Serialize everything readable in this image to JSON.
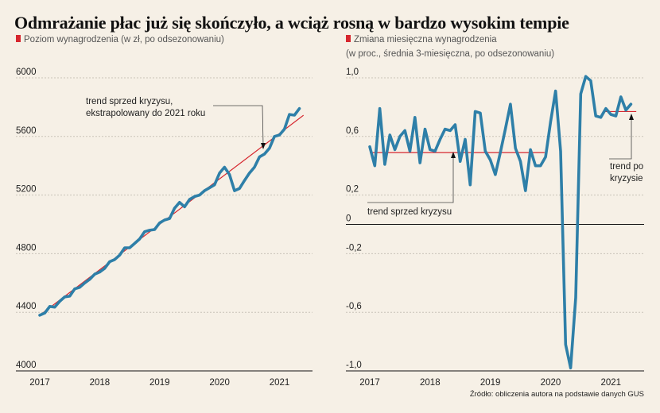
{
  "title": "Odmrażanie płac już się skończyło, a wciąż rosną w bardzo wysokim tempie",
  "source": "Źródło: obliczenia autora na podstawie danych GUS",
  "colors": {
    "series": "#2e7fa8",
    "trend": "#d6262e",
    "marker": "#d6262e",
    "grid": "#c9c3b8"
  },
  "chart_data": [
    {
      "type": "line",
      "subtitle": "Poziom wynagrodzenia (w zł, po odsezonowaniu)",
      "ylim": [
        4000,
        6000
      ],
      "yticks": [
        "6000",
        "5600",
        "5200",
        "4800",
        "4400",
        "4000"
      ],
      "ytick_values": [
        6000,
        5600,
        5200,
        4800,
        4400,
        4000
      ],
      "xlim": [
        2017.0,
        2021.55
      ],
      "xticks": [
        "2017",
        "2018",
        "2019",
        "2020",
        "2021"
      ],
      "xtick_values": [
        2017,
        2018,
        2019,
        2020,
        2021
      ],
      "series": [
        {
          "x_start": 2017.0,
          "x_step": 0.0833,
          "values": [
            4380,
            4395,
            4440,
            4435,
            4475,
            4505,
            4510,
            4560,
            4570,
            4600,
            4625,
            4660,
            4675,
            4700,
            4745,
            4760,
            4790,
            4840,
            4840,
            4870,
            4900,
            4950,
            4960,
            4965,
            5010,
            5030,
            5040,
            5110,
            5150,
            5120,
            5170,
            5190,
            5200,
            5230,
            5250,
            5270,
            5350,
            5390,
            5340,
            5230,
            5245,
            5300,
            5350,
            5390,
            5460,
            5480,
            5520,
            5600,
            5610,
            5650,
            5750,
            5745,
            5790
          ]
        }
      ],
      "trend": {
        "x_start": 2017.0,
        "y_start": 4380,
        "x_end": 2021.4,
        "y_end": 5745
      },
      "annotation": {
        "lines": [
          "trend sprzed kryzysu,",
          "ekstrapolowany do 2021 roku"
        ]
      }
    },
    {
      "type": "line",
      "subtitle": "Zmiana miesięczna wynagrodzenia",
      "subtitle2": "(w proc., średnia 3-miesięczna, po odsezonowaniu)",
      "ylim": [
        -1.0,
        1.0
      ],
      "yticks": [
        "1,0",
        "0,6",
        "0,2",
        "0",
        "-0,2",
        "-0,6",
        "-1,0"
      ],
      "ytick_values": [
        1.0,
        0.6,
        0.2,
        0,
        -0.2,
        -0.6,
        -1.0
      ],
      "xlim": [
        2017.0,
        2021.55
      ],
      "xticks": [
        "2017",
        "2018",
        "2019",
        "2020",
        "2021"
      ],
      "xtick_values": [
        2017,
        2018,
        2019,
        2020,
        2021
      ],
      "series": [
        {
          "x_start": 2017.0,
          "x_step": 0.0833,
          "values": [
            0.53,
            0.4,
            0.79,
            0.41,
            0.61,
            0.51,
            0.6,
            0.64,
            0.5,
            0.73,
            0.42,
            0.65,
            0.51,
            0.5,
            0.58,
            0.65,
            0.64,
            0.68,
            0.43,
            0.58,
            0.27,
            0.77,
            0.76,
            0.5,
            0.44,
            0.34,
            0.49,
            0.65,
            0.82,
            0.52,
            0.43,
            0.23,
            0.51,
            0.4,
            0.4,
            0.46,
            0.7,
            0.91,
            0.5,
            -0.82,
            -0.98,
            -0.5,
            0.89,
            1.01,
            0.98,
            0.74,
            0.73,
            0.79,
            0.75,
            0.74,
            0.87,
            0.78,
            0.82
          ]
        }
      ],
      "trend_segments": [
        {
          "x_start": 2017.0,
          "x_end": 2019.9,
          "y": 0.49
        },
        {
          "x_start": 2020.9,
          "x_end": 2021.42,
          "y": 0.77
        }
      ],
      "zero_line": 0,
      "annotation_left": {
        "text": "trend sprzed kryzysu"
      },
      "annotation_right": {
        "lines": [
          "trend po",
          "kryzysie"
        ]
      }
    }
  ]
}
